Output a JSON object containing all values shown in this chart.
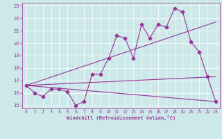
{
  "xlabel": "Windchill (Refroidissement éolien,°C)",
  "bg_color": "#cce8e8",
  "line_color": "#993399",
  "xlim": [
    -0.5,
    23.5
  ],
  "ylim": [
    14.75,
    23.25
  ],
  "yticks": [
    15,
    16,
    17,
    18,
    19,
    20,
    21,
    22,
    23
  ],
  "xticks": [
    0,
    1,
    2,
    3,
    4,
    5,
    6,
    7,
    8,
    9,
    10,
    11,
    12,
    13,
    14,
    15,
    16,
    17,
    18,
    19,
    20,
    21,
    22,
    23
  ],
  "series": [
    {
      "x": [
        0,
        1,
        2,
        3,
        4,
        5,
        6,
        7,
        8,
        9,
        10,
        11,
        12,
        13,
        14,
        15,
        16,
        17,
        18,
        19,
        20,
        21,
        22,
        23
      ],
      "y": [
        16.6,
        16.0,
        15.7,
        16.3,
        16.3,
        16.1,
        15.0,
        15.3,
        17.5,
        17.5,
        18.8,
        20.6,
        20.4,
        18.8,
        21.5,
        20.4,
        21.5,
        21.3,
        22.8,
        22.5,
        20.1,
        19.3,
        17.3,
        15.3
      ],
      "marker": "D",
      "markersize": 2.5,
      "linewidth": 0.8,
      "has_markers": true
    },
    {
      "x": [
        0,
        23
      ],
      "y": [
        16.6,
        21.7
      ],
      "linewidth": 0.8,
      "has_markers": false
    },
    {
      "x": [
        0,
        23
      ],
      "y": [
        16.6,
        15.3
      ],
      "linewidth": 0.8,
      "has_markers": false
    },
    {
      "x": [
        0,
        23
      ],
      "y": [
        16.6,
        17.3
      ],
      "linewidth": 0.8,
      "has_markers": false
    }
  ]
}
